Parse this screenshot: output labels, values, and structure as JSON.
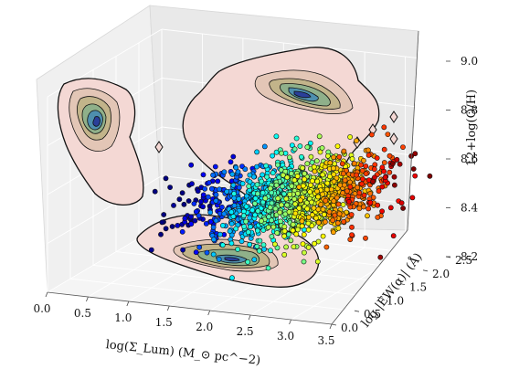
{
  "chart_data": {
    "type": "scatter",
    "projection": "3d",
    "grid": true,
    "legend": "none",
    "x_axis": {
      "label": "log(Σ_Lum) (M_⊙ pc^−2)",
      "ticks": [
        "0.0",
        "0.5",
        "1.0",
        "1.5",
        "2.0",
        "2.5",
        "3.0",
        "3.5"
      ],
      "range": [
        0.0,
        3.5
      ]
    },
    "y_axis": {
      "label": "log |EW(α)| (Å)",
      "ticks": [
        "0.0",
        "0.5",
        "1.0",
        "1.5",
        "2.0",
        "2.5"
      ],
      "range": [
        0.0,
        2.5
      ]
    },
    "z_axis": {
      "label": "12+log(O/H)",
      "ticks": [
        "8.2",
        "8.4",
        "8.6",
        "8.8",
        "9.0"
      ],
      "range": [
        8.2,
        9.0
      ]
    },
    "colormap": "jet",
    "color_encodes": "log(Σ_Lum)",
    "marker": "circle with black edge",
    "projected_density_contours": [
      "x-z wall",
      "y-z wall",
      "x-y floor"
    ]
  }
}
